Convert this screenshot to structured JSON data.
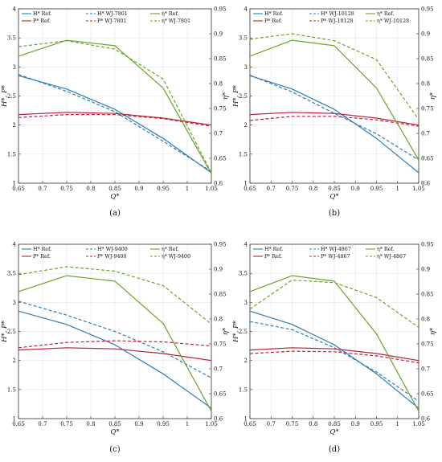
{
  "figure": {
    "panels": [
      {
        "caption": "(a)",
        "legend": [
          "H* Ref.",
          "H* WJ-7801",
          "η* Ref.",
          "P* Ref.",
          "P* WJ-7801",
          "η* WJ-7801"
        ],
        "ylabel_left": "H*, P*",
        "ylabel_right": "η*",
        "xlabel": "Q*"
      },
      {
        "caption": "(b)",
        "legend": [
          "H* Ref.",
          "H* WJ-10128",
          "η* Ref.",
          "P* Ref.",
          "P* WJ-10128",
          "η* WJ-10128"
        ],
        "ylabel_left": "H*, P*",
        "ylabel_right": "η*",
        "xlabel": "Q*"
      },
      {
        "caption": "(c)",
        "legend": [
          "H* Ref.",
          "H* WJ-9400",
          "η* Ref.",
          "P* Ref.",
          "P* WJ-9400",
          "η* WJ-9400"
        ],
        "ylabel_left": "H*, P*",
        "ylabel_right": "η*",
        "xlabel": "Q*"
      },
      {
        "caption": "(d)",
        "legend": [
          "H* Ref.",
          "H* WJ-4867",
          "η* Ref.",
          "P* Ref.",
          "P* WJ-4867",
          "η* WJ-4867"
        ],
        "ylabel_left": "H*, P*",
        "ylabel_right": "η*",
        "xlabel": "Q*"
      }
    ]
  },
  "chart_data": [
    {
      "type": "line",
      "caption": "(a)",
      "xlabel": "Q*",
      "ylabel": "H*, P*",
      "ylabel_right": "η*",
      "xlim": [
        0.65,
        1.05
      ],
      "ylim": [
        1,
        4
      ],
      "ylim_right": [
        0.6,
        0.95
      ],
      "xticks": [
        "0.65",
        "0.7",
        "0.75",
        "0.8",
        "0.85",
        "0.9",
        "0.95",
        "1",
        "1.05"
      ],
      "yticks": [
        "1",
        "1.5",
        "2",
        "2.5",
        "3",
        "3.5",
        "4"
      ],
      "yticks_right": [
        "0.6",
        "0.65",
        "0.7",
        "0.75",
        "0.8",
        "0.85",
        "0.9",
        "0.95"
      ],
      "grid": true,
      "legend_position": "top",
      "x": [
        0.65,
        0.75,
        0.85,
        0.95,
        1.05
      ],
      "series": [
        {
          "name": "H* Ref.",
          "axis": "left",
          "color": "#2c7bb6",
          "dash": false,
          "values": [
            2.85,
            2.62,
            2.27,
            1.77,
            1.18
          ]
        },
        {
          "name": "H* WJ-7801",
          "axis": "left",
          "color": "#2c7bb6",
          "dash": true,
          "values": [
            2.87,
            2.58,
            2.23,
            1.72,
            1.2
          ]
        },
        {
          "name": "P* Ref.",
          "axis": "left",
          "color": "#b8243a",
          "dash": false,
          "values": [
            2.18,
            2.22,
            2.2,
            2.12,
            2.0
          ]
        },
        {
          "name": "P* WJ-7801",
          "axis": "left",
          "color": "#b8243a",
          "dash": true,
          "values": [
            2.13,
            2.18,
            2.18,
            2.11,
            1.98
          ]
        },
        {
          "name": "η* Ref.",
          "axis": "right",
          "color": "#6aa329",
          "dash": false,
          "values": [
            0.855,
            0.887,
            0.876,
            0.791,
            0.619
          ]
        },
        {
          "name": "η* WJ-7801",
          "axis": "right",
          "color": "#6aa329",
          "dash": true,
          "values": [
            0.874,
            0.886,
            0.869,
            0.809,
            0.621
          ]
        }
      ]
    },
    {
      "type": "line",
      "caption": "(b)",
      "xlabel": "Q*",
      "ylabel": "H*, P*",
      "ylabel_right": "η*",
      "xlim": [
        0.65,
        1.05
      ],
      "ylim": [
        1,
        4
      ],
      "ylim_right": [
        0.6,
        0.95
      ],
      "xticks": [
        "0.65",
        "0.7",
        "0.75",
        "0.8",
        "0.85",
        "0.9",
        "0.95",
        "1",
        "1.05"
      ],
      "yticks": [
        "1",
        "1.5",
        "2",
        "2.5",
        "3",
        "3.5",
        "4"
      ],
      "yticks_right": [
        "0.6",
        "0.65",
        "0.7",
        "0.75",
        "0.8",
        "0.85",
        "0.9",
        "0.95"
      ],
      "grid": true,
      "legend_position": "top",
      "x": [
        0.65,
        0.75,
        0.85,
        0.95,
        1.05
      ],
      "series": [
        {
          "name": "H* Ref.",
          "axis": "left",
          "color": "#2c7bb6",
          "dash": false,
          "values": [
            2.85,
            2.62,
            2.27,
            1.77,
            1.18
          ]
        },
        {
          "name": "H* WJ-10128",
          "axis": "left",
          "color": "#2c7bb6",
          "dash": true,
          "values": [
            2.86,
            2.57,
            2.2,
            1.85,
            1.4
          ]
        },
        {
          "name": "P* Ref.",
          "axis": "left",
          "color": "#b8243a",
          "dash": false,
          "values": [
            2.18,
            2.22,
            2.2,
            2.12,
            2.0
          ]
        },
        {
          "name": "P* WJ-10128",
          "axis": "left",
          "color": "#b8243a",
          "dash": true,
          "values": [
            2.08,
            2.15,
            2.15,
            2.09,
            1.98
          ]
        },
        {
          "name": "η* Ref.",
          "axis": "right",
          "color": "#6aa329",
          "dash": false,
          "values": [
            0.855,
            0.887,
            0.876,
            0.791,
            0.647
          ]
        },
        {
          "name": "η* WJ-10128",
          "axis": "right",
          "color": "#6aa329",
          "dash": true,
          "values": [
            0.889,
            0.9,
            0.886,
            0.848,
            0.728
          ]
        }
      ]
    },
    {
      "type": "line",
      "caption": "(c)",
      "xlabel": "Q*",
      "ylabel": "H*, P*",
      "ylabel_right": "η*",
      "xlim": [
        0.65,
        1.05
      ],
      "ylim": [
        1,
        4
      ],
      "ylim_right": [
        0.6,
        0.95
      ],
      "xticks": [
        "0.65",
        "0.7",
        "0.75",
        "0.8",
        "0.85",
        "0.9",
        "0.95",
        "1",
        "1.05"
      ],
      "yticks": [
        "1",
        "1.5",
        "2",
        "2.5",
        "3",
        "3.5",
        "4"
      ],
      "yticks_right": [
        "0.6",
        "0.65",
        "0.7",
        "0.75",
        "0.8",
        "0.85",
        "0.9",
        "0.95"
      ],
      "grid": true,
      "legend_position": "top",
      "x": [
        0.65,
        0.75,
        0.85,
        0.95,
        1.05
      ],
      "series": [
        {
          "name": "H* Ref.",
          "axis": "left",
          "color": "#2c7bb6",
          "dash": false,
          "values": [
            2.85,
            2.62,
            2.27,
            1.77,
            1.18
          ]
        },
        {
          "name": "H* WJ-9400",
          "axis": "left",
          "color": "#2c7bb6",
          "dash": true,
          "values": [
            3.02,
            2.78,
            2.5,
            2.15,
            1.7
          ]
        },
        {
          "name": "P* Ref.",
          "axis": "left",
          "color": "#b8243a",
          "dash": false,
          "values": [
            2.18,
            2.22,
            2.2,
            2.12,
            2.0
          ]
        },
        {
          "name": "P* WJ-9400",
          "axis": "left",
          "color": "#b8243a",
          "dash": true,
          "values": [
            2.22,
            2.31,
            2.34,
            2.32,
            2.25
          ]
        },
        {
          "name": "η* Ref.",
          "axis": "right",
          "color": "#6aa329",
          "dash": false,
          "values": [
            0.855,
            0.887,
            0.876,
            0.791,
            0.615
          ]
        },
        {
          "name": "η* WJ-9400",
          "axis": "right",
          "color": "#6aa329",
          "dash": true,
          "values": [
            0.889,
            0.905,
            0.896,
            0.867,
            0.79
          ]
        }
      ]
    },
    {
      "type": "line",
      "caption": "(d)",
      "xlabel": "Q*",
      "ylabel": "H*, P*",
      "ylabel_right": "η*",
      "xlim": [
        0.65,
        1.05
      ],
      "ylim": [
        1,
        4
      ],
      "ylim_right": [
        0.6,
        0.95
      ],
      "xticks": [
        "0.65",
        "0.7",
        "0.75",
        "0.8",
        "0.85",
        "0.9",
        "0.95",
        "1",
        "1.05"
      ],
      "yticks": [
        "1",
        "1.5",
        "2",
        "2.5",
        "3",
        "3.5",
        "4"
      ],
      "yticks_right": [
        "0.6",
        "0.65",
        "0.7",
        "0.75",
        "0.8",
        "0.85",
        "0.9",
        "0.95"
      ],
      "grid": true,
      "legend_position": "top",
      "x": [
        0.65,
        0.75,
        0.85,
        0.95,
        1.05
      ],
      "series": [
        {
          "name": "H* Ref.",
          "axis": "left",
          "color": "#2c7bb6",
          "dash": false,
          "values": [
            2.85,
            2.62,
            2.27,
            1.77,
            1.18
          ]
        },
        {
          "name": "H* WJ-4867",
          "axis": "left",
          "color": "#2c7bb6",
          "dash": true,
          "values": [
            2.67,
            2.53,
            2.22,
            1.8,
            1.3
          ]
        },
        {
          "name": "P* Ref.",
          "axis": "left",
          "color": "#b8243a",
          "dash": false,
          "values": [
            2.18,
            2.22,
            2.2,
            2.12,
            2.0
          ]
        },
        {
          "name": "P* WJ-4867",
          "axis": "left",
          "color": "#b8243a",
          "dash": true,
          "values": [
            2.12,
            2.16,
            2.15,
            2.08,
            1.96
          ]
        },
        {
          "name": "η* Ref.",
          "axis": "right",
          "color": "#6aa329",
          "dash": false,
          "values": [
            0.855,
            0.887,
            0.876,
            0.77,
            0.615
          ]
        },
        {
          "name": "η* WJ-4867",
          "axis": "right",
          "color": "#6aa329",
          "dash": true,
          "values": [
            0.82,
            0.878,
            0.873,
            0.843,
            0.783
          ]
        }
      ]
    }
  ]
}
